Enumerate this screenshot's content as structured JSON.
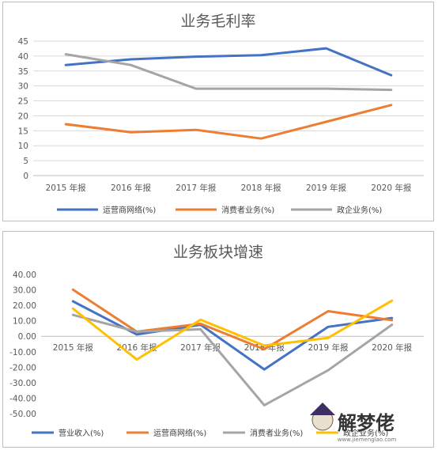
{
  "colors": {
    "blue": "#4472c4",
    "orange": "#ed7d31",
    "gray": "#a5a5a5",
    "yellow": "#ffc000",
    "grid": "#d9d9d9",
    "axis": "#bfbfbf"
  },
  "watermark": {
    "text": "解梦佬",
    "url": "www.jiemenglao.com"
  },
  "chart_data": [
    {
      "type": "line",
      "title": "业务毛利率",
      "categories": [
        "2015 年报",
        "2016 年报",
        "2017 年报",
        "2018 年报",
        "2019 年报",
        "2020 年报"
      ],
      "ylim": [
        0,
        45
      ],
      "yticks": [
        0,
        5,
        10,
        15,
        20,
        25,
        30,
        35,
        40,
        45
      ],
      "ytick_format": "int",
      "grid": true,
      "legend_position": "bottom",
      "series": [
        {
          "name": "运营商网络(%)",
          "color": "#4472c4",
          "values": [
            37.0,
            38.9,
            39.8,
            40.3,
            42.6,
            33.6
          ]
        },
        {
          "name": "消费者业务(%)",
          "color": "#ed7d31",
          "values": [
            17.2,
            14.5,
            15.3,
            12.4,
            18.0,
            23.6
          ]
        },
        {
          "name": "政企业务(%)",
          "color": "#a5a5a5",
          "values": [
            40.6,
            37.0,
            29.1,
            29.1,
            29.1,
            28.7
          ]
        }
      ]
    },
    {
      "type": "line",
      "title": "业务板块增速",
      "categories": [
        "2015 年报",
        "2016 年报",
        "2017 年报",
        "2018 年报",
        "2019 年报",
        "2020 年报"
      ],
      "ylim": [
        -50,
        40
      ],
      "yticks": [
        40,
        30,
        20,
        10,
        0,
        -10,
        -20,
        -30,
        -40,
        -50
      ],
      "ytick_format": "fixed2",
      "grid": false,
      "legend_position": "bottom",
      "series": [
        {
          "name": "营业收入(%)",
          "color": "#4472c4",
          "values": [
            22.6,
            1.2,
            7.5,
            -21.4,
            6.1,
            11.8
          ]
        },
        {
          "name": "运营商网络(%)",
          "color": "#ed7d31",
          "values": [
            30.2,
            3.0,
            8.1,
            -8.4,
            16.2,
            10.4
          ]
        },
        {
          "name": "消费者业务(%)",
          "color": "#a5a5a5",
          "values": [
            13.8,
            3.0,
            4.5,
            -44.6,
            -22.0,
            7.5
          ]
        },
        {
          "name": "政企业务(%)",
          "color": "#ffc000",
          "values": [
            17.9,
            -15.0,
            10.7,
            -6.0,
            -1.0,
            23.0
          ]
        }
      ]
    }
  ]
}
